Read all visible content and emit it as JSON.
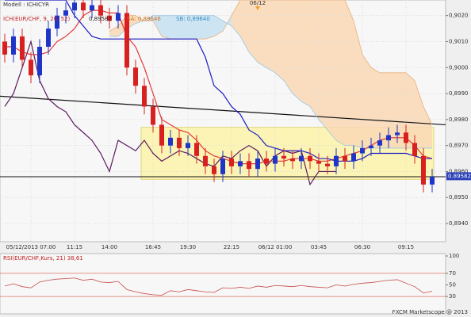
{
  "chart_data": [
    {
      "type": "candlestick",
      "title": "Modell : ICHICYR",
      "subtitle": "ICH(EUR/CHF, 9, 26, 52)",
      "legend_items": [
        "0,89582",
        "SA: 0,89646",
        "SB: 0,89640"
      ],
      "open": [
        0.901,
        0.9005,
        0.9012,
        0.9003,
        0.8997,
        0.9008,
        0.9015,
        0.902,
        0.9022,
        0.9025,
        0.9022,
        0.9024,
        0.902,
        0.9018,
        0.9021,
        0.9,
        0.8993,
        0.8985,
        0.8978,
        0.897,
        0.8973,
        0.8969,
        0.8971,
        0.8966,
        0.8962,
        0.8959,
        0.8965,
        0.8962,
        0.8964,
        0.8961,
        0.8965,
        0.8963,
        0.8966,
        0.8965,
        0.8964,
        0.8966,
        0.8964,
        0.8963,
        0.8962,
        0.8966,
        0.8964,
        0.8967,
        0.8969,
        0.897,
        0.8972,
        0.8974,
        0.8975,
        0.8971,
        0.8966,
        0.8955
      ],
      "high": [
        0.9013,
        0.9015,
        0.9015,
        0.9006,
        0.9011,
        0.9018,
        0.9023,
        0.9025,
        0.9028,
        0.9028,
        0.9027,
        0.9027,
        0.9023,
        0.9024,
        0.9024,
        0.9003,
        0.8996,
        0.8988,
        0.8981,
        0.8976,
        0.8976,
        0.8974,
        0.8974,
        0.8969,
        0.8965,
        0.8968,
        0.8968,
        0.8967,
        0.8967,
        0.8968,
        0.8968,
        0.8969,
        0.8969,
        0.8968,
        0.8969,
        0.8969,
        0.8967,
        0.8966,
        0.8969,
        0.8969,
        0.897,
        0.8972,
        0.8973,
        0.8975,
        0.8977,
        0.8978,
        0.8978,
        0.8974,
        0.8969,
        0.8961
      ],
      "low": [
        0.9002,
        0.9002,
        0.9,
        0.8994,
        0.8994,
        0.9005,
        0.9012,
        0.9017,
        0.9019,
        0.9019,
        0.9019,
        0.9017,
        0.9015,
        0.9015,
        0.8997,
        0.899,
        0.8982,
        0.8975,
        0.8967,
        0.8967,
        0.8966,
        0.8966,
        0.8963,
        0.8959,
        0.8956,
        0.8956,
        0.8959,
        0.8959,
        0.8958,
        0.8958,
        0.896,
        0.896,
        0.8962,
        0.8961,
        0.8961,
        0.8961,
        0.896,
        0.8959,
        0.8959,
        0.8961,
        0.8961,
        0.8964,
        0.8966,
        0.8967,
        0.8969,
        0.8971,
        0.8968,
        0.8963,
        0.8952,
        0.8952
      ],
      "close": [
        0.9005,
        0.9012,
        0.9003,
        0.8997,
        0.9008,
        0.9015,
        0.902,
        0.9022,
        0.9025,
        0.9022,
        0.9024,
        0.902,
        0.9018,
        0.9021,
        0.9,
        0.8993,
        0.8985,
        0.8978,
        0.897,
        0.8973,
        0.8969,
        0.8971,
        0.8966,
        0.8962,
        0.8959,
        0.8965,
        0.8962,
        0.8964,
        0.8961,
        0.8965,
        0.8963,
        0.8966,
        0.8965,
        0.8964,
        0.8966,
        0.8964,
        0.8963,
        0.8962,
        0.8966,
        0.8964,
        0.8967,
        0.8969,
        0.897,
        0.8972,
        0.8974,
        0.8975,
        0.8971,
        0.8966,
        0.8955,
        0.8958
      ],
      "up_color": "#1f35c8",
      "down_color": "#d92020",
      "series": [
        {
          "color": "#e23a3a",
          "values": [
            0.9008,
            0.9008,
            0.9006,
            0.9005,
            0.9005,
            0.9006,
            0.901,
            0.9012,
            0.9015,
            0.902,
            0.9022,
            0.9022,
            0.9021,
            0.9021,
            0.9012,
            0.9008,
            0.9,
            0.899,
            0.898,
            0.8978,
            0.8976,
            0.8975,
            0.8972,
            0.8968,
            0.8966,
            0.8965,
            0.8964,
            0.8963,
            0.8963,
            0.8963,
            0.8964,
            0.8964,
            0.8964,
            0.8965,
            0.8965,
            0.8965,
            0.8964,
            0.8964,
            0.8965,
            0.8966,
            0.8967,
            0.8968,
            0.897,
            0.8972,
            0.8973,
            0.8973,
            0.8973,
            0.897,
            0.8966,
            0.8965
          ]
        },
        {
          "color": "#1c1cc4",
          "values": [
            0.9026,
            0.9026,
            0.9026,
            0.9026,
            0.9026,
            0.9026,
            0.9026,
            0.9026,
            0.902,
            0.9016,
            0.9012,
            0.9011,
            0.9011,
            0.9011,
            0.9011,
            0.9011,
            0.9011,
            0.9011,
            0.9011,
            0.9011,
            0.9011,
            0.9011,
            0.9011,
            0.9004,
            0.8993,
            0.899,
            0.8985,
            0.8982,
            0.8976,
            0.8974,
            0.897,
            0.8969,
            0.8968,
            0.8968,
            0.8968,
            0.8967,
            0.8965,
            0.8965,
            0.8964,
            0.8964,
            0.8964,
            0.8965,
            0.8967,
            0.8967,
            0.8967,
            0.8967,
            0.8967,
            0.8966,
            0.8965,
            0.8965
          ]
        },
        {
          "color": "#5b1a5e",
          "values": [
            0.8985,
            0.899,
            0.9,
            0.901,
            0.8995,
            0.8988,
            0.8985,
            0.8983,
            0.8978,
            0.8975,
            0.8972,
            0.8967,
            0.896,
            0.8972,
            0.897,
            0.8968,
            0.8972,
            0.8967,
            0.8964,
            0.8966,
            0.8968,
            0.8967,
            0.8965,
            0.8963,
            0.8962,
            0.8966,
            0.8965,
            0.8968,
            0.897,
            0.8968,
            0.8962,
            0.8966,
            0.8968,
            0.8967,
            0.8968,
            0.8955,
            0.896,
            0.896,
            0.896,
            null,
            null,
            null,
            null,
            null,
            null,
            null,
            null,
            null,
            null,
            null
          ]
        },
        {
          "color": "#9cc8e0",
          "values": [
            null,
            null,
            null,
            null,
            null,
            null,
            null,
            null,
            null,
            null,
            null,
            null,
            0.9012,
            0.9012,
            0.9015,
            0.9017,
            0.9018,
            0.902,
            0.902,
            0.902,
            0.902,
            0.902,
            0.902,
            0.902,
            0.902,
            0.9018,
            0.9016,
            0.9012,
            0.9006,
            0.9002,
            0.9,
            0.8998,
            0.8995,
            0.899,
            0.8987,
            0.8985,
            0.898,
            0.8976,
            0.8972,
            0.897,
            0.897,
            0.8969,
            0.8969,
            0.8969,
            0.8969,
            0.8969,
            0.8969,
            0.8969,
            0.8969,
            0.8969
          ]
        },
        {
          "color": "#e8b080",
          "values": [
            null,
            null,
            null,
            null,
            null,
            null,
            null,
            null,
            null,
            null,
            null,
            null,
            0.9014,
            0.9016,
            0.902,
            0.902,
            0.9018,
            0.9018,
            0.9012,
            0.9011,
            0.9011,
            0.9011,
            0.9011,
            0.9011,
            0.9012,
            0.9014,
            0.902,
            0.9026,
            0.9026,
            0.9026,
            0.9026,
            0.9026,
            0.9026,
            0.9026,
            0.9026,
            0.9026,
            0.9026,
            0.9026,
            0.9026,
            0.9026,
            0.9018,
            0.9005,
            0.9,
            0.8998,
            0.8998,
            0.8998,
            0.8998,
            0.8995,
            0.8985,
            0.8978
          ]
        }
      ],
      "cloud_colors": [
        "#c6e2f2",
        "#f9d8b4"
      ],
      "trendline": [
        0.8989,
        0.8978
      ],
      "hline": 0.8958,
      "zone": [
        0.8957,
        0.8977
      ],
      "zone_color": "#fbf4b4",
      "last_price": 0.89582,
      "date_marker": {
        "value": 29,
        "label": "06/12"
      },
      "ylim": [
        0.8933,
        0.9026
      ],
      "yticks": [
        {
          "value": 0.894,
          "label": "0,8940"
        },
        {
          "value": 0.895,
          "label": "0,8950"
        },
        {
          "value": 0.896,
          "label": "0,8960"
        },
        {
          "value": 0.897,
          "label": "0,8970"
        },
        {
          "value": 0.898,
          "label": "0,8980"
        },
        {
          "value": 0.899,
          "label": "0,8990"
        },
        {
          "value": 0.9,
          "label": "0,9000"
        },
        {
          "value": 0.901,
          "label": "0,9010"
        },
        {
          "value": 0.902,
          "label": "0,9020"
        }
      ],
      "xticks": [
        {
          "value": 3,
          "label": "05/12/2013 07:00"
        },
        {
          "value": 8,
          "label": "11:15"
        },
        {
          "value": 12,
          "label": "14:00"
        },
        {
          "value": 17,
          "label": "16:45"
        },
        {
          "value": 21,
          "label": "19:30"
        },
        {
          "value": 26,
          "label": "22:15"
        },
        {
          "value": 31,
          "label": "06/12 01:00"
        },
        {
          "value": 36,
          "label": "03:45"
        },
        {
          "value": 41,
          "label": "06:30"
        },
        {
          "value": 46,
          "label": "09:15"
        }
      ],
      "grid": true
    },
    {
      "type": "line",
      "title": "RSI(EUR/CHF,Kurs, 21) 38,61",
      "series": [
        {
          "color": "#c84a4a",
          "values": [
            48,
            52,
            47,
            45,
            55,
            58,
            60,
            61,
            62,
            58,
            60,
            55,
            54,
            56,
            42,
            38,
            35,
            33,
            32,
            40,
            38,
            42,
            40,
            38,
            37,
            45,
            44,
            46,
            44,
            48,
            46,
            49,
            48,
            47,
            49,
            47,
            46,
            45,
            50,
            48,
            51,
            53,
            54,
            56,
            58,
            59,
            53,
            47,
            36,
            39
          ]
        }
      ],
      "levels": [
        30,
        70
      ],
      "level_color": "#e07060",
      "ylim": [
        0,
        100
      ],
      "yticks": [
        30,
        50,
        70,
        100
      ]
    }
  ],
  "footer": "FXCM Marketscope @ 2013"
}
